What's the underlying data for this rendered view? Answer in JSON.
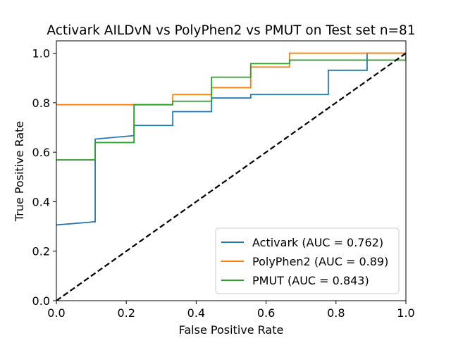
{
  "chart_data": {
    "type": "line",
    "title": "Activark AILDvN vs PolyPhen2 vs PMUT on Test set n=81",
    "xlabel": "False Positive Rate",
    "ylabel": "True Positive Rate",
    "xlim": [
      0,
      1
    ],
    "ylim": [
      0,
      1.05
    ],
    "x_ticks": [
      "0.0",
      "0.2",
      "0.4",
      "0.6",
      "0.8",
      "1.0"
    ],
    "y_ticks": [
      "0.0",
      "0.2",
      "0.4",
      "0.6",
      "0.8",
      "1.0"
    ],
    "grid": false,
    "legend_position": "lower-right",
    "series": [
      {
        "name": "Activark (AUC = 0.762)",
        "color": "#1f77b4",
        "x": [
          0,
          0.111,
          0.111,
          0.222,
          0.222,
          0.333,
          0.333,
          0.444,
          0.444,
          0.556,
          0.556,
          0.778,
          0.778,
          0.889,
          0.889,
          1.0
        ],
        "y": [
          0.306,
          0.319,
          0.653,
          0.667,
          0.708,
          0.708,
          0.764,
          0.764,
          0.819,
          0.819,
          0.833,
          0.833,
          0.931,
          0.931,
          1.0,
          1.0
        ]
      },
      {
        "name": "PolyPhen2 (AUC = 0.89)",
        "color": "#ff7f0e",
        "x": [
          0,
          0.222,
          0.222,
          0.333,
          0.333,
          0.444,
          0.444,
          0.556,
          0.556,
          0.667,
          0.667,
          1.0,
          1.0
        ],
        "y": [
          0.792,
          0.792,
          0.792,
          0.792,
          0.833,
          0.833,
          0.861,
          0.861,
          0.944,
          0.944,
          1.0,
          1.0,
          1.0
        ]
      },
      {
        "name": "PMUT (AUC = 0.843)",
        "color": "#2ca02c",
        "x": [
          0,
          0.111,
          0.111,
          0.222,
          0.222,
          0.333,
          0.333,
          0.444,
          0.444,
          0.556,
          0.556,
          0.667,
          0.667,
          1.0,
          1.0
        ],
        "y": [
          0.569,
          0.569,
          0.639,
          0.639,
          0.792,
          0.792,
          0.806,
          0.806,
          0.903,
          0.903,
          0.958,
          0.958,
          0.972,
          0.972,
          1.0
        ]
      }
    ],
    "reference_line": {
      "x": [
        0,
        1
      ],
      "y": [
        0,
        1
      ],
      "color": "#000000",
      "style": "dashed"
    }
  }
}
